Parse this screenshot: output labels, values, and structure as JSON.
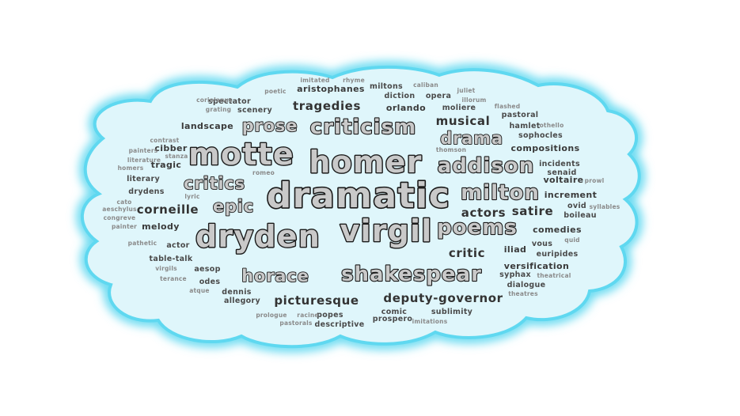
{
  "cloud": {
    "fill": "#dff6fb",
    "glow": "#5fd8f0",
    "words": [
      {
        "text": "dramatic",
        "tier": 1
      },
      {
        "text": "homer",
        "tier": 2
      },
      {
        "text": "motte",
        "tier": 2
      },
      {
        "text": "virgil",
        "tier": 2
      },
      {
        "text": "dryden",
        "tier": 2
      },
      {
        "text": "shakespear",
        "tier": 3
      },
      {
        "text": "criticism",
        "tier": 3
      },
      {
        "text": "milton",
        "tier": 3
      },
      {
        "text": "addison",
        "tier": 3
      },
      {
        "text": "poems",
        "tier": 3
      },
      {
        "text": "horace",
        "tier": 4
      },
      {
        "text": "critics",
        "tier": 4
      },
      {
        "text": "epic",
        "tier": 4
      },
      {
        "text": "drama",
        "tier": 4
      },
      {
        "text": "prose",
        "tier": 4
      },
      {
        "text": "tragedies",
        "tier": 5
      },
      {
        "text": "picturesque",
        "tier": 5
      },
      {
        "text": "critic",
        "tier": 5
      },
      {
        "text": "actors",
        "tier": 5
      },
      {
        "text": "satire",
        "tier": 5
      },
      {
        "text": "musical",
        "tier": 5
      },
      {
        "text": "corneille",
        "tier": 5
      },
      {
        "text": "deputy-governor",
        "tier": 5
      },
      {
        "text": "iliad",
        "tier": 6
      },
      {
        "text": "landscape",
        "tier": 6
      },
      {
        "text": "orlando",
        "tier": 6
      },
      {
        "text": "melody",
        "tier": 6
      },
      {
        "text": "comedies",
        "tier": 6
      },
      {
        "text": "versification",
        "tier": 6
      },
      {
        "text": "increment",
        "tier": 6
      },
      {
        "text": "voltaire",
        "tier": 6
      },
      {
        "text": "compositions",
        "tier": 6
      },
      {
        "text": "aristophanes",
        "tier": 6
      },
      {
        "text": "cibber",
        "tier": 6
      },
      {
        "text": "tragic",
        "tier": 6
      },
      {
        "text": "moliere",
        "tier": 7
      },
      {
        "text": "diction",
        "tier": 7
      },
      {
        "text": "opera",
        "tier": 7
      },
      {
        "text": "miltons",
        "tier": 7
      },
      {
        "text": "hamlet",
        "tier": 7
      },
      {
        "text": "sophocles",
        "tier": 7
      },
      {
        "text": "incidents",
        "tier": 7
      },
      {
        "text": "senaid",
        "tier": 7
      },
      {
        "text": "ovid",
        "tier": 7
      },
      {
        "text": "boileau",
        "tier": 7
      },
      {
        "text": "vous",
        "tier": 7
      },
      {
        "text": "euripides",
        "tier": 7
      },
      {
        "text": "syphax",
        "tier": 7
      },
      {
        "text": "dialogue",
        "tier": 7
      },
      {
        "text": "literary",
        "tier": 7
      },
      {
        "text": "drydens",
        "tier": 7
      },
      {
        "text": "actor",
        "tier": 7
      },
      {
        "text": "table-talk",
        "tier": 7
      },
      {
        "text": "aesop",
        "tier": 7
      },
      {
        "text": "odes",
        "tier": 7
      },
      {
        "text": "dennis",
        "tier": 7
      },
      {
        "text": "allegory",
        "tier": 7
      },
      {
        "text": "comic",
        "tier": 7
      },
      {
        "text": "sublimity",
        "tier": 7
      },
      {
        "text": "popes",
        "tier": 7
      },
      {
        "text": "prospero",
        "tier": 7
      },
      {
        "text": "descriptive",
        "tier": 7
      },
      {
        "text": "spectator",
        "tier": 7
      },
      {
        "text": "scenery",
        "tier": 7
      },
      {
        "text": "pastoral",
        "tier": 7
      },
      {
        "text": "contrast",
        "tier": 8
      },
      {
        "text": "painters",
        "tier": 8
      },
      {
        "text": "literature",
        "tier": 8
      },
      {
        "text": "homers",
        "tier": 8
      },
      {
        "text": "stanza",
        "tier": 8
      },
      {
        "text": "pathetic",
        "tier": 8
      },
      {
        "text": "virgils",
        "tier": 8
      },
      {
        "text": "terance",
        "tier": 8
      },
      {
        "text": "atque",
        "tier": 8
      },
      {
        "text": "prologue",
        "tier": 8
      },
      {
        "text": "racine",
        "tier": 8
      },
      {
        "text": "pastorals",
        "tier": 8
      },
      {
        "text": "imitations",
        "tier": 8
      },
      {
        "text": "theatrical",
        "tier": 8
      },
      {
        "text": "theatres",
        "tier": 8
      },
      {
        "text": "quid",
        "tier": 8
      },
      {
        "text": "syllables",
        "tier": 8
      },
      {
        "text": "prowl",
        "tier": 8
      },
      {
        "text": "othello",
        "tier": 8
      },
      {
        "text": "thomson",
        "tier": 8
      },
      {
        "text": "flashed",
        "tier": 8
      },
      {
        "text": "illorum",
        "tier": 8
      },
      {
        "text": "juliet",
        "tier": 8
      },
      {
        "text": "caliban",
        "tier": 8
      },
      {
        "text": "rhyme",
        "tier": 8
      },
      {
        "text": "imitated",
        "tier": 8
      },
      {
        "text": "poetic",
        "tier": 8
      },
      {
        "text": "coriolanus",
        "tier": 8
      },
      {
        "text": "grating",
        "tier": 8
      },
      {
        "text": "romeo",
        "tier": 8
      },
      {
        "text": "lyric",
        "tier": 8
      },
      {
        "text": "cato",
        "tier": 8
      },
      {
        "text": "aeschylus",
        "tier": 8
      },
      {
        "text": "congreve",
        "tier": 8
      },
      {
        "text": "painter",
        "tier": 8
      }
    ]
  }
}
